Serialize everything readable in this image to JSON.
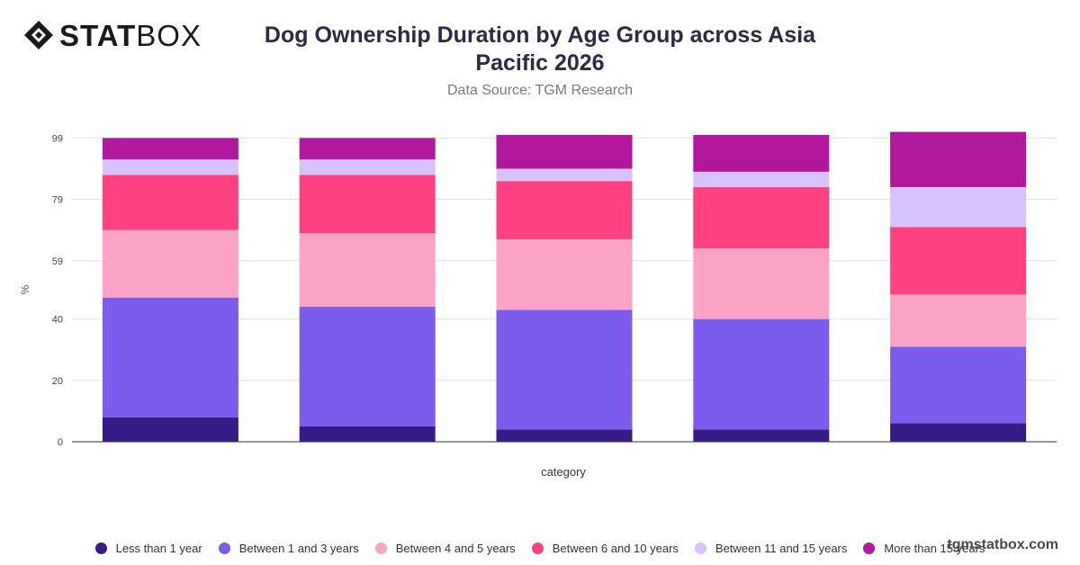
{
  "brand": {
    "logo_strong": "STAT",
    "logo_light": "BOX",
    "watermark": "tgmstatbox.com"
  },
  "chart_data": {
    "type": "bar",
    "stacked": true,
    "title": "Dog Ownership Duration by Age Group across Asia Pacific 2026",
    "subtitle": "Data Source: TGM Research",
    "xlabel": "category",
    "ylabel": "%",
    "ylim": [
      0,
      100
    ],
    "yticks": [
      0,
      20,
      40,
      59,
      79,
      99
    ],
    "categories": [
      "",
      "",
      "",
      "",
      ""
    ],
    "grid": true,
    "legend_position": "bottom",
    "series": [
      {
        "name": "Less than 1 year",
        "color": "#371c87",
        "values": [
          8,
          5,
          4,
          4,
          6
        ]
      },
      {
        "name": "Between 1 and 3 years",
        "color": "#7c5cec",
        "values": [
          39,
          39,
          39,
          36,
          25
        ]
      },
      {
        "name": "Between 4 and 5 years",
        "color": "#fba3c5",
        "values": [
          22,
          24,
          23,
          23,
          17
        ]
      },
      {
        "name": "Between 6 and 10 years",
        "color": "#ff4182",
        "values": [
          18,
          19,
          19,
          20,
          22
        ]
      },
      {
        "name": "Between 11 and 15 years",
        "color": "#d8c2fb",
        "values": [
          5,
          5,
          4,
          5,
          13
        ]
      },
      {
        "name": "More than 15 years",
        "color": "#b2189e",
        "values": [
          7,
          7,
          11,
          12,
          18
        ]
      }
    ]
  }
}
